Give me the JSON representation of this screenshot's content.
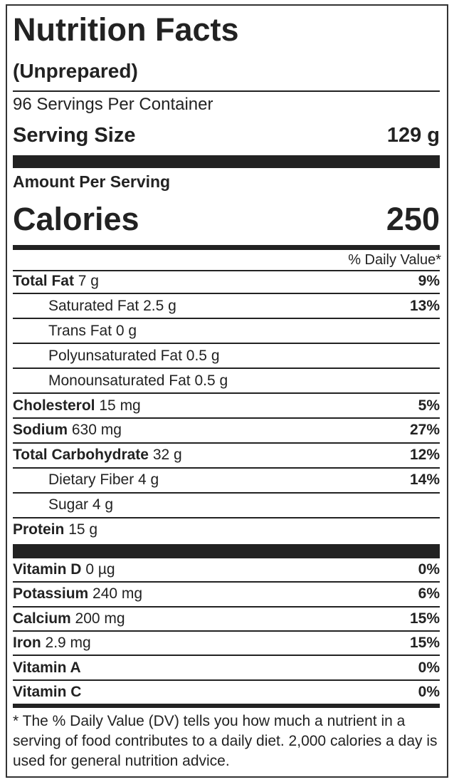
{
  "header": {
    "title": "Nutrition Facts",
    "subtitle": "(Unprepared)",
    "servings": "96 Servings Per Container",
    "serving_size_label": "Serving Size",
    "serving_size": "129 g"
  },
  "calories": {
    "heading": "Amount Per Serving",
    "label": "Calories",
    "value": "250"
  },
  "dv_heading": "% Daily Value*",
  "nutrients": [
    {
      "name": "Total Fat",
      "amount": "7 g",
      "dv": "9%"
    },
    {
      "name": "Saturated Fat",
      "amount": "2.5 g",
      "dv": "13%",
      "indent": true
    },
    {
      "name": "Trans Fat",
      "amount": "0 g",
      "indent": true
    },
    {
      "name": "Polyunsaturated Fat",
      "amount": "0.5 g",
      "indent": true
    },
    {
      "name": "Monounsaturated Fat",
      "amount": "0.5 g",
      "indent": true
    },
    {
      "name": "Cholesterol",
      "amount": "15 mg",
      "dv": "5%"
    },
    {
      "name": "Sodium",
      "amount": "630 mg",
      "dv": "27%"
    },
    {
      "name": "Total Carbohydrate",
      "amount": "32 g",
      "dv": "12%"
    },
    {
      "name": "Dietary Fiber",
      "amount": "4 g",
      "dv": "14%",
      "indent": true
    },
    {
      "name": "Sugar",
      "amount": "4 g",
      "indent": true
    },
    {
      "name": "Protein",
      "amount": "15 g"
    }
  ],
  "vitamins": [
    {
      "name": "Vitamin D",
      "amount": "0 µg",
      "dv": "0%"
    },
    {
      "name": "Potassium",
      "amount": "240 mg",
      "dv": "6%"
    },
    {
      "name": "Calcium",
      "amount": "200 mg",
      "dv": "15%"
    },
    {
      "name": "Iron",
      "amount": "2.9 mg",
      "dv": "15%"
    },
    {
      "name": "Vitamin A",
      "dv": "0%"
    },
    {
      "name": "Vitamin C",
      "dv": "0%"
    }
  ],
  "footnote": "* The % Daily Value (DV) tells you how much a nutrient in a serving of food contributes to a daily diet. 2,000 calories a day is used for general nutrition advice."
}
